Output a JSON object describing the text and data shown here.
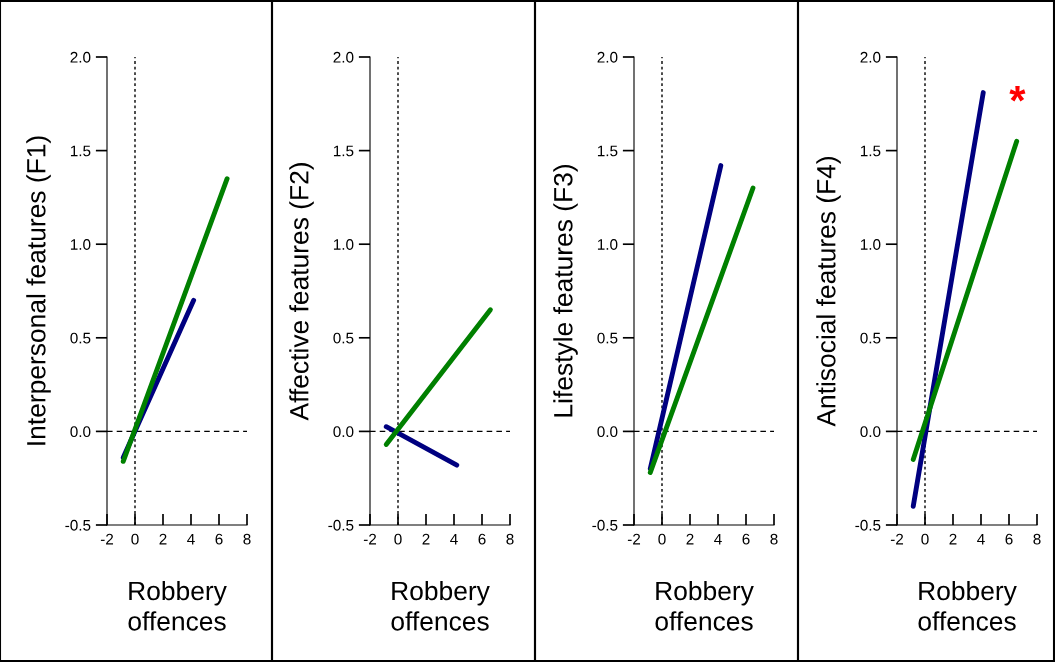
{
  "chart_data": [
    {
      "type": "line",
      "xlabel": "Robbery\noffences",
      "ylabel": "Interpersonal features (F1)",
      "xlim": [
        -2,
        8
      ],
      "ylim": [
        -0.5,
        2.0
      ],
      "xticks": [
        -2,
        0,
        2,
        4,
        6,
        8
      ],
      "yticks": [
        {
          "value": -0.5,
          "label": "-0.5"
        },
        {
          "value": 0,
          "label": "0.0"
        },
        {
          "value": 0.5,
          "label": "0.5"
        },
        {
          "value": 1,
          "label": "1.0"
        },
        {
          "value": 1.5,
          "label": "1.5"
        },
        {
          "value": 2,
          "label": "2.0"
        }
      ],
      "grid": false,
      "line_style": "solid",
      "marker": "none",
      "series": [
        {
          "color": "#000080",
          "x": [
            -0.84,
            4.19
          ],
          "values": [
            -0.14,
            0.7
          ]
        },
        {
          "color": "#008000",
          "x": [
            -0.84,
            6.58
          ],
          "values": [
            -0.16,
            1.35
          ]
        }
      ],
      "ref_lines": [
        {
          "axis": "x",
          "value": 0,
          "line_style": "dotted",
          "color": "#000000"
        },
        {
          "axis": "y",
          "value": 0,
          "line_style": "dashed",
          "color": "#000000"
        }
      ]
    },
    {
      "type": "line",
      "xlabel": "Robbery\noffences",
      "ylabel": "Affective features (F2)",
      "xlim": [
        -2,
        8
      ],
      "ylim": [
        -0.5,
        2.0
      ],
      "xticks": [
        -2,
        0,
        2,
        4,
        6,
        8
      ],
      "yticks": [
        {
          "value": -0.5,
          "label": "-0.5"
        },
        {
          "value": 0,
          "label": "0.0"
        },
        {
          "value": 0.5,
          "label": "0.5"
        },
        {
          "value": 1,
          "label": "1.0"
        },
        {
          "value": 1.5,
          "label": "1.5"
        },
        {
          "value": 2,
          "label": "2.0"
        }
      ],
      "grid": false,
      "line_style": "solid",
      "marker": "none",
      "series": [
        {
          "color": "#000080",
          "x": [
            -0.84,
            4.2
          ],
          "values": [
            0.025,
            -0.18
          ]
        },
        {
          "color": "#008000",
          "x": [
            -0.84,
            6.6
          ],
          "values": [
            -0.07,
            0.65
          ]
        }
      ],
      "ref_lines": [
        {
          "axis": "x",
          "value": 0,
          "line_style": "dotted",
          "color": "#000000"
        },
        {
          "axis": "y",
          "value": 0,
          "line_style": "dashed",
          "color": "#000000"
        }
      ]
    },
    {
      "type": "line",
      "xlabel": "Robbery\noffences",
      "ylabel": "Lifestyle features (F3)",
      "xlim": [
        -2,
        8
      ],
      "ylim": [
        -0.5,
        2.0
      ],
      "xticks": [
        -2,
        0,
        2,
        4,
        6,
        8
      ],
      "yticks": [
        {
          "value": -0.5,
          "label": "-0.5"
        },
        {
          "value": 0,
          "label": "0.0"
        },
        {
          "value": 0.5,
          "label": "0.5"
        },
        {
          "value": 1,
          "label": "1.0"
        },
        {
          "value": 1.5,
          "label": "1.5"
        },
        {
          "value": 2,
          "label": "2.0"
        }
      ],
      "grid": false,
      "line_style": "solid",
      "marker": "none",
      "series": [
        {
          "color": "#000080",
          "x": [
            -0.84,
            4.2
          ],
          "values": [
            -0.2,
            1.42
          ]
        },
        {
          "color": "#008000",
          "x": [
            -0.84,
            6.5
          ],
          "values": [
            -0.22,
            1.3
          ]
        }
      ],
      "ref_lines": [
        {
          "axis": "x",
          "value": 0,
          "line_style": "dotted",
          "color": "#000000"
        },
        {
          "axis": "y",
          "value": 0,
          "line_style": "dashed",
          "color": "#000000"
        }
      ]
    },
    {
      "type": "line",
      "xlabel": "Robbery\noffences",
      "ylabel": "Antisocial features (F4)",
      "xlim": [
        -2,
        8
      ],
      "ylim": [
        -0.5,
        2.0
      ],
      "xticks": [
        -2,
        0,
        2,
        4,
        6,
        8
      ],
      "yticks": [
        {
          "value": -0.5,
          "label": "-0.5"
        },
        {
          "value": 0,
          "label": "0.0"
        },
        {
          "value": 0.5,
          "label": "0.5"
        },
        {
          "value": 1,
          "label": "1.0"
        },
        {
          "value": 1.5,
          "label": "1.5"
        },
        {
          "value": 2,
          "label": "2.0"
        }
      ],
      "grid": false,
      "line_style": "solid",
      "marker": "none",
      "series": [
        {
          "color": "#000080",
          "x": [
            -0.84,
            4.16
          ],
          "values": [
            -0.4,
            1.81
          ]
        },
        {
          "color": "#008000",
          "x": [
            -0.84,
            6.55
          ],
          "values": [
            -0.15,
            1.55
          ]
        }
      ],
      "ref_lines": [
        {
          "axis": "x",
          "value": 0,
          "line_style": "dotted",
          "color": "#000000"
        },
        {
          "axis": "y",
          "value": 0,
          "line_style": "dashed",
          "color": "#000000"
        }
      ],
      "annotations": [
        "*"
      ]
    }
  ]
}
